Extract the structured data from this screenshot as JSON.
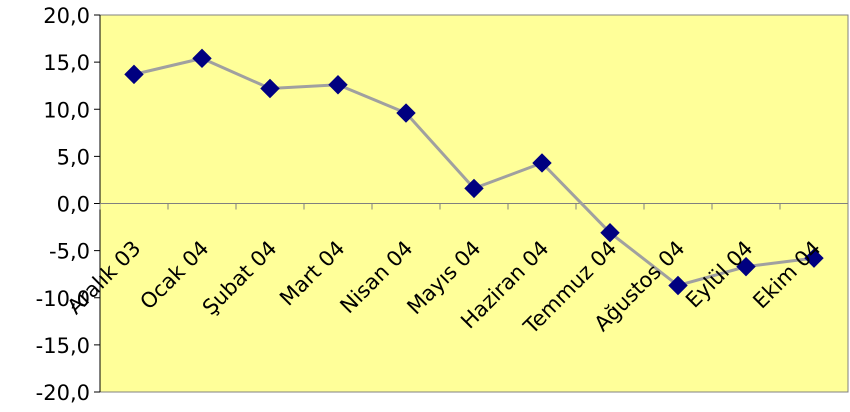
{
  "chart_data": {
    "type": "line",
    "title": "",
    "xlabel": "",
    "ylabel": "",
    "categories": [
      "Aralık 03",
      "Ocak 04",
      "Şubat 04",
      "Mart 04",
      "Nisan 04",
      "Mayıs 04",
      "Haziran 04",
      "Temmuz 04",
      "Ağustos 04",
      "Eylül 04",
      "Ekim 04"
    ],
    "series": [
      {
        "values": [
          13.7,
          15.4,
          12.2,
          12.6,
          9.6,
          1.6,
          4.3,
          -3.1,
          -8.7,
          -6.7,
          -5.8
        ]
      }
    ],
    "ylim": [
      -20,
      20
    ],
    "yticks": [
      "20,0",
      "15,0",
      "10,0",
      "5,0",
      "0,0",
      "-5,0",
      "-10,0",
      "-15,0",
      "-20,0"
    ],
    "ytick_values": [
      20,
      15,
      10,
      5,
      0,
      -5,
      -10,
      -15,
      -20
    ],
    "grid": false,
    "legend": "none",
    "colors": {
      "plot_background": "#FFFF99",
      "line": "#A0A0A0",
      "marker": "#000080",
      "axis": "#808080"
    },
    "marker_shape": "diamond"
  }
}
